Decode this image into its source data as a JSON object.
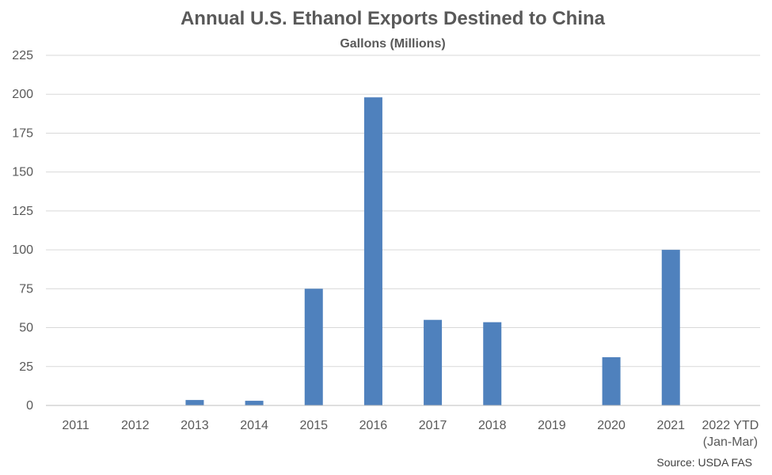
{
  "chart_data": {
    "type": "bar",
    "title": "Annual U.S. Ethanol Exports Destined to China",
    "subtitle": "Gallons (Millions)",
    "categories": [
      [
        "2011"
      ],
      [
        "2012"
      ],
      [
        "2013"
      ],
      [
        "2014"
      ],
      [
        "2015"
      ],
      [
        "2016"
      ],
      [
        "2017"
      ],
      [
        "2018"
      ],
      [
        "2019"
      ],
      [
        "2020"
      ],
      [
        "2021"
      ],
      [
        "2022 YTD",
        "(Jan-Mar)"
      ]
    ],
    "values": [
      0,
      0,
      3.5,
      3,
      75,
      198,
      55,
      53.5,
      0,
      31,
      100,
      0
    ],
    "ylim": [
      0,
      225
    ],
    "yticks": [
      0,
      25,
      50,
      75,
      100,
      125,
      150,
      175,
      200,
      225
    ],
    "grid": true,
    "legend": "none",
    "bar_color": "#4f81bd",
    "source": "Source: USDA FAS"
  }
}
